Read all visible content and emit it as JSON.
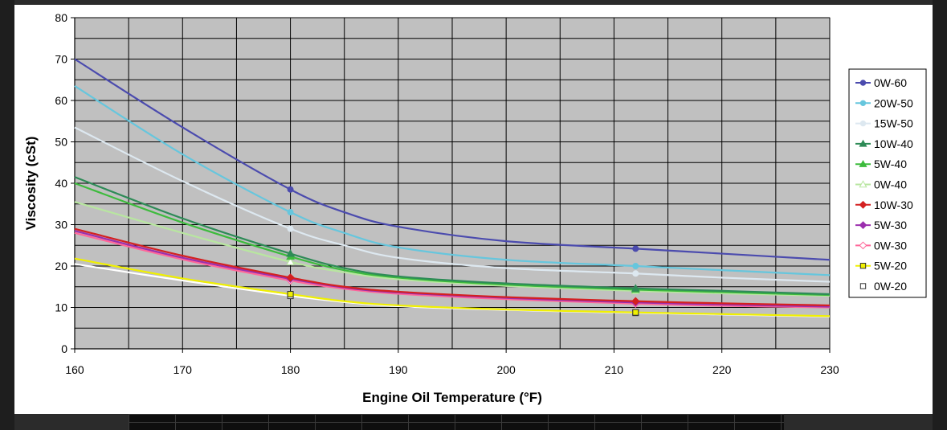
{
  "chart_data": {
    "type": "line",
    "title": "",
    "xlabel": "Engine Oil Temperature (°F)",
    "ylabel": "Viscosity (cSt)",
    "xlim": [
      160,
      230
    ],
    "ylim": [
      0,
      80
    ],
    "xticks": [
      160,
      170,
      180,
      190,
      200,
      210,
      220,
      230
    ],
    "yticks": [
      0,
      10,
      20,
      30,
      40,
      50,
      60,
      70,
      80
    ],
    "grid": true,
    "legend_position": "right",
    "plot_background": "#c0c0c0",
    "series": [
      {
        "name": "0W-60",
        "color": "#4b4bae",
        "marker": "circle",
        "marker_fill": "#4b4bae",
        "points": [
          [
            160,
            70.0
          ],
          [
            170,
            53.5
          ],
          [
            180,
            38.5
          ],
          [
            185,
            33.0
          ],
          [
            190,
            29.5
          ],
          [
            200,
            26.0
          ],
          [
            212,
            24.2
          ],
          [
            220,
            23.0
          ],
          [
            230,
            21.5
          ]
        ],
        "markers": [
          [
            180,
            38.5
          ],
          [
            212,
            24.2
          ]
        ]
      },
      {
        "name": "20W-50",
        "color": "#66c6dd",
        "marker": "circle",
        "marker_fill": "#66c6dd",
        "points": [
          [
            160,
            63.5
          ],
          [
            170,
            47.0
          ],
          [
            180,
            33.0
          ],
          [
            185,
            28.0
          ],
          [
            190,
            24.5
          ],
          [
            200,
            21.5
          ],
          [
            212,
            20.0
          ],
          [
            220,
            19.0
          ],
          [
            230,
            17.8
          ]
        ],
        "markers": [
          [
            180,
            33.0
          ],
          [
            212,
            20.0
          ]
        ]
      },
      {
        "name": "15W-50",
        "color": "#dde8f0",
        "marker": "circle",
        "marker_fill": "#dde8f0",
        "points": [
          [
            160,
            53.5
          ],
          [
            170,
            40.5
          ],
          [
            180,
            29.0
          ],
          [
            185,
            25.0
          ],
          [
            190,
            22.0
          ],
          [
            200,
            19.5
          ],
          [
            212,
            18.2
          ],
          [
            220,
            17.2
          ],
          [
            230,
            16.2
          ]
        ],
        "markers": [
          [
            180,
            29.0
          ],
          [
            212,
            18.2
          ]
        ]
      },
      {
        "name": "10W-40",
        "color": "#2e8b57",
        "marker": "triangle",
        "marker_fill": "#2e8b57",
        "points": [
          [
            160,
            41.5
          ],
          [
            170,
            31.5
          ],
          [
            180,
            23.0
          ],
          [
            185,
            19.5
          ],
          [
            190,
            17.5
          ],
          [
            200,
            15.8
          ],
          [
            212,
            14.6
          ],
          [
            220,
            14.0
          ],
          [
            230,
            13.2
          ]
        ],
        "markers": [
          [
            180,
            23.0
          ],
          [
            212,
            14.6
          ]
        ]
      },
      {
        "name": "5W-40",
        "color": "#3dbb3d",
        "marker": "triangle",
        "marker_fill": "#3dbb3d",
        "points": [
          [
            160,
            40.0
          ],
          [
            170,
            30.5
          ],
          [
            180,
            22.3
          ],
          [
            185,
            19.0
          ],
          [
            190,
            17.2
          ],
          [
            200,
            15.5
          ],
          [
            212,
            14.3
          ],
          [
            220,
            13.7
          ],
          [
            230,
            13.0
          ]
        ],
        "markers": [
          [
            180,
            22.3
          ],
          [
            212,
            14.3
          ]
        ]
      },
      {
        "name": "0W-40",
        "color": "#b8e6a0",
        "marker": "triangle",
        "marker_fill": "#ffffff",
        "points": [
          [
            160,
            35.5
          ],
          [
            170,
            28.0
          ],
          [
            180,
            21.0
          ],
          [
            185,
            18.5
          ],
          [
            190,
            16.8
          ],
          [
            200,
            15.2
          ],
          [
            212,
            14.0
          ],
          [
            220,
            13.4
          ],
          [
            230,
            12.8
          ]
        ],
        "markers": [
          [
            180,
            21.0
          ],
          [
            212,
            14.0
          ]
        ]
      },
      {
        "name": "10W-30",
        "color": "#d42020",
        "marker": "diamond",
        "marker_fill": "#d42020",
        "points": [
          [
            160,
            29.0
          ],
          [
            170,
            22.5
          ],
          [
            180,
            17.2
          ],
          [
            185,
            15.0
          ],
          [
            190,
            13.8
          ],
          [
            200,
            12.5
          ],
          [
            212,
            11.5
          ],
          [
            220,
            11.0
          ],
          [
            230,
            10.5
          ]
        ],
        "markers": [
          [
            180,
            17.2
          ],
          [
            212,
            11.5
          ]
        ]
      },
      {
        "name": "5W-30",
        "color": "#9b2fae",
        "marker": "diamond",
        "marker_fill": "#9b2fae",
        "points": [
          [
            160,
            28.5
          ],
          [
            170,
            22.0
          ],
          [
            180,
            16.9
          ],
          [
            185,
            14.8
          ],
          [
            190,
            13.6
          ],
          [
            200,
            12.3
          ],
          [
            212,
            11.2
          ],
          [
            220,
            10.7
          ],
          [
            230,
            10.2
          ]
        ],
        "markers": [
          [
            180,
            16.9
          ],
          [
            212,
            11.2
          ]
        ]
      },
      {
        "name": "0W-30",
        "color": "#ff6699",
        "marker": "diamond",
        "marker_fill": "#ffffff",
        "points": [
          [
            160,
            28.0
          ],
          [
            170,
            21.6
          ],
          [
            180,
            16.5
          ],
          [
            185,
            14.5
          ],
          [
            190,
            13.3
          ],
          [
            200,
            12.0
          ],
          [
            212,
            10.9
          ],
          [
            220,
            10.4
          ],
          [
            230,
            10.0
          ]
        ],
        "markers": [
          [
            180,
            16.5
          ],
          [
            212,
            10.9
          ]
        ]
      },
      {
        "name": "5W-20",
        "color": "#f0f000",
        "marker": "square",
        "marker_fill": "#f0f000",
        "points": [
          [
            160,
            21.8
          ],
          [
            170,
            17.0
          ],
          [
            180,
            13.2
          ],
          [
            185,
            11.5
          ],
          [
            190,
            10.5
          ],
          [
            200,
            9.5
          ],
          [
            212,
            8.8
          ],
          [
            220,
            8.4
          ],
          [
            230,
            7.9
          ]
        ],
        "markers": [
          [
            180,
            13.2
          ],
          [
            212,
            8.8
          ]
        ]
      },
      {
        "name": "0W-20",
        "color": "#ffffff",
        "marker": "square",
        "marker_fill": "#ffffff",
        "points": [
          [
            160,
            20.5
          ],
          [
            170,
            16.5
          ],
          [
            180,
            12.8
          ],
          [
            185,
            11.3
          ],
          [
            190,
            10.3
          ],
          [
            200,
            9.4
          ],
          [
            212,
            8.7
          ],
          [
            220,
            8.3
          ],
          [
            230,
            7.8
          ]
        ],
        "markers": [
          [
            180,
            12.8
          ],
          [
            212,
            8.7
          ]
        ]
      }
    ]
  }
}
